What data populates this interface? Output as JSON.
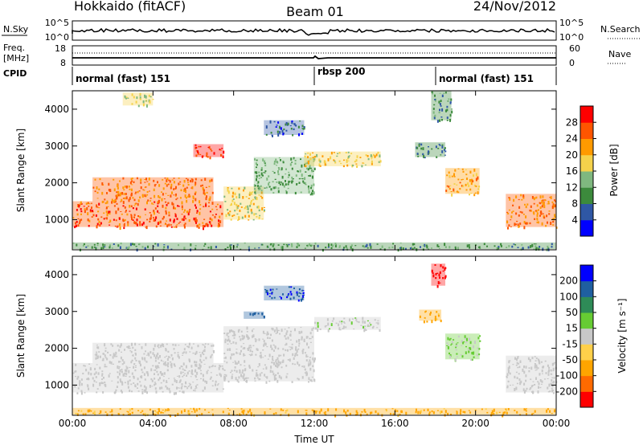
{
  "header": {
    "title": "Hokkaido (fitACF)",
    "beam": "Beam 01",
    "date": "24/Nov/2012"
  },
  "noise_panel": {
    "left_label": "N.Sky",
    "right_label": "N.Search",
    "left_ticks": [
      "10^5",
      "10^0"
    ],
    "right_ticks": [
      "10^5",
      "10^0"
    ]
  },
  "freq_panel": {
    "left_label_1": "Freq.",
    "left_label_2": "[MHz]",
    "right_label": "Nave",
    "left_ticks": [
      "18",
      "8"
    ],
    "right_ticks": [
      "60",
      "0"
    ]
  },
  "cpid_panel": {
    "label": "CPID",
    "segments": [
      {
        "label": "normal (fast) 151",
        "start_hour": 0,
        "end_hour": 12
      },
      {
        "label": "rbsp 200",
        "start_hour": 12,
        "end_hour": 18
      },
      {
        "label": "normal (fast) 151",
        "start_hour": 18,
        "end_hour": 24
      }
    ]
  },
  "colors": {
    "power": [
      "#0000ff",
      "#2f57a5",
      "#3c8a3c",
      "#7fb87f",
      "#f5d24b",
      "#ff9a00",
      "#ff5500",
      "#ff0000"
    ],
    "velocity": [
      "#ff0000",
      "#ff6a00",
      "#ffa500",
      "#ffd04a",
      "#c8c8c8",
      "#66cc33",
      "#2e8b57",
      "#1f5fa0",
      "#0000ff"
    ],
    "ground_scatter": "#c8c8c8"
  },
  "chart_data": [
    {
      "type": "heatmap",
      "name": "power",
      "ylabel": "Slant Range [km]",
      "xlabel": "Time UT",
      "xlim_hours": [
        0,
        24
      ],
      "ylim": [
        180,
        4500
      ],
      "x_ticks": [
        "00:00",
        "04:00",
        "08:00",
        "12:00",
        "16:00",
        "20:00",
        "00:00"
      ],
      "y_ticks": [
        1000,
        2000,
        3000,
        4000
      ],
      "colorbar": {
        "label": "Power [dB]",
        "ticks": [
          4,
          8,
          12,
          16,
          20,
          24,
          28
        ],
        "range": [
          0,
          32
        ]
      },
      "regions": [
        {
          "t0": 0.0,
          "t1": 7.5,
          "r0": 800,
          "r1": 1500,
          "level": 26
        },
        {
          "t0": 1.0,
          "t1": 7.0,
          "r0": 1500,
          "r1": 2150,
          "level": 24
        },
        {
          "t0": 6.0,
          "t1": 7.5,
          "r0": 2700,
          "r1": 3050,
          "level": 28
        },
        {
          "t0": 7.5,
          "t1": 9.5,
          "r0": 1000,
          "r1": 1900,
          "level": 18
        },
        {
          "t0": 9.0,
          "t1": 12.0,
          "r0": 1700,
          "r1": 2700,
          "level": 12
        },
        {
          "t0": 11.5,
          "t1": 15.3,
          "r0": 2450,
          "r1": 2850,
          "level": 18
        },
        {
          "t0": 9.5,
          "t1": 11.5,
          "r0": 3300,
          "r1": 3700,
          "level": 6
        },
        {
          "t0": 17.0,
          "t1": 18.5,
          "r0": 2700,
          "r1": 3100,
          "level": 8
        },
        {
          "t0": 18.5,
          "t1": 20.2,
          "r0": 1700,
          "r1": 2400,
          "level": 22
        },
        {
          "t0": 21.5,
          "t1": 24.0,
          "r0": 800,
          "r1": 1700,
          "level": 24
        },
        {
          "t0": 2.5,
          "t1": 4.0,
          "r0": 4100,
          "r1": 4450,
          "level": 16
        },
        {
          "t0": 17.8,
          "t1": 18.8,
          "r0": 3700,
          "r1": 4500,
          "level": 10
        },
        {
          "t0": 0.0,
          "t1": 24.0,
          "r0": 200,
          "r1": 380,
          "level": 10
        }
      ]
    },
    {
      "type": "heatmap",
      "name": "velocity",
      "ylabel": "Slant Range [km]",
      "xlabel": "Time UT",
      "xlim_hours": [
        0,
        24
      ],
      "ylim": [
        180,
        4500
      ],
      "x_ticks": [
        "00:00",
        "04:00",
        "08:00",
        "12:00",
        "16:00",
        "20:00",
        "00:00"
      ],
      "y_ticks": [
        1000,
        2000,
        3000,
        4000
      ],
      "colorbar": {
        "label": "Velocity [m s⁻¹]",
        "ticks": [
          -200,
          -100,
          -50,
          -15,
          15,
          50,
          100,
          200
        ]
      },
      "regions": [
        {
          "t0": 0.0,
          "t1": 7.5,
          "r0": 800,
          "r1": 1600,
          "level": 0
        },
        {
          "t0": 1.0,
          "t1": 7.0,
          "r0": 1600,
          "r1": 2150,
          "level": 0
        },
        {
          "t0": 7.5,
          "t1": 12.0,
          "r0": 1100,
          "r1": 2600,
          "level": 0
        },
        {
          "t0": 8.5,
          "t1": 9.5,
          "r0": 2800,
          "r1": 3000,
          "level": 120
        },
        {
          "t0": 12.0,
          "t1": 15.3,
          "r0": 2500,
          "r1": 2850,
          "level": 5
        },
        {
          "t0": 17.2,
          "t1": 18.3,
          "r0": 2750,
          "r1": 3050,
          "level": -60
        },
        {
          "t0": 18.5,
          "t1": 20.2,
          "r0": 1700,
          "r1": 2400,
          "level": 20
        },
        {
          "t0": 21.5,
          "t1": 24.0,
          "r0": 800,
          "r1": 1800,
          "level": 0
        },
        {
          "t0": 9.5,
          "t1": 11.5,
          "r0": 3300,
          "r1": 3700,
          "level": 200
        },
        {
          "t0": 17.8,
          "t1": 18.5,
          "r0": 3700,
          "r1": 4300,
          "level": -220
        },
        {
          "t0": 0.0,
          "t1": 24.0,
          "r0": 200,
          "r1": 380,
          "level": -60
        }
      ]
    }
  ]
}
